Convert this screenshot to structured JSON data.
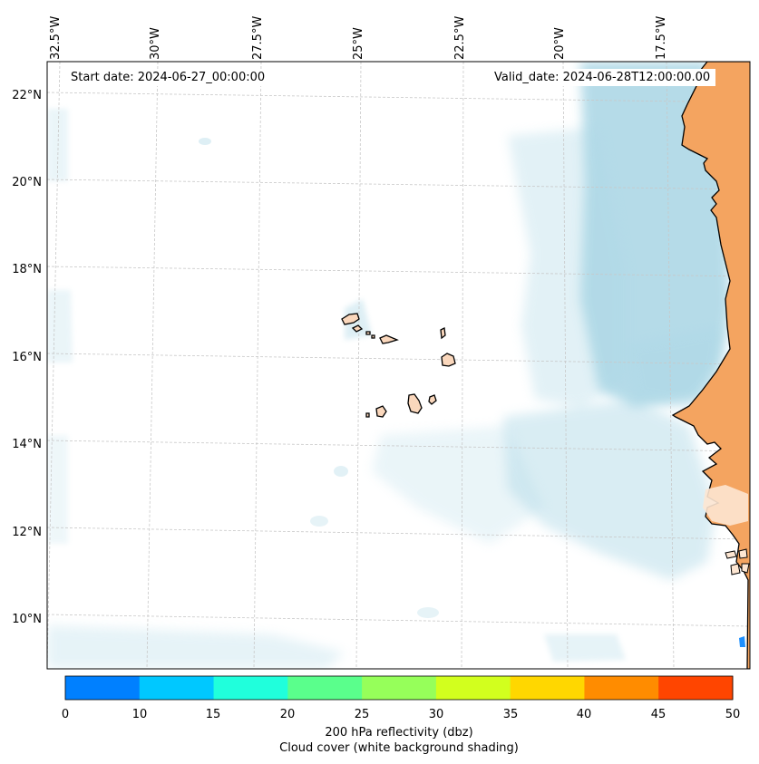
{
  "map": {
    "start_date": "Start date: 2024-06-27_00:00:00",
    "valid_date": "Valid_date: 2024-06-28T12:00:00.00",
    "lon_labels": [
      "32.5°W",
      "30°W",
      "27.5°W",
      "25°W",
      "22.5°W",
      "20°W",
      "17.5°W"
    ],
    "lat_labels": [
      "22°N",
      "20°N",
      "18°N",
      "16°N",
      "14°N",
      "12°N",
      "10°N"
    ],
    "region": "Cape Verde islands and West African coast (Senegal, Mauritania, Gambia, Guinea-Bissau)"
  },
  "colorbar": {
    "ticks": [
      "0",
      "10",
      "15",
      "20",
      "25",
      "30",
      "35",
      "40",
      "45",
      "50"
    ],
    "colors": [
      "#0080ff",
      "#00c8ff",
      "#20ffdc",
      "#5aff8c",
      "#96ff5a",
      "#d2ff1e",
      "#ffd700",
      "#ff8c00",
      "#ff4500"
    ],
    "label": "200 hPa reflectivity (dbz)",
    "sublabel": "Cloud cover (white background shading)"
  },
  "colors": {
    "land": "#f4a460",
    "cloud": "#add8e6",
    "coastline": "#000000",
    "grid": "#c8c8c8"
  }
}
